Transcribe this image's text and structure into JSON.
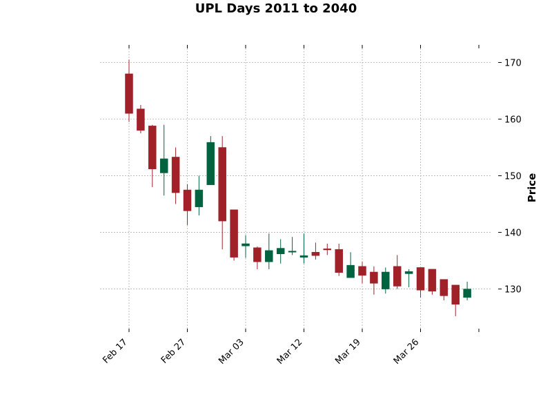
{
  "chart_data": {
    "type": "candlestick",
    "title": "UPL Days 2011 to 2040",
    "ylabel": "Price",
    "xlabel": "",
    "ylim": [
      123,
      172.5
    ],
    "yticks": [
      130,
      140,
      150,
      160,
      170
    ],
    "grid": true,
    "y_axis_side": "right",
    "colors": {
      "up": "#006340",
      "down": "#a02128"
    },
    "x_tick_labels": [
      "Feb 17",
      "Feb 27",
      "Mar 03",
      "Mar 12",
      "Mar 19",
      "Mar 26",
      ""
    ],
    "x_tick_index": [
      0,
      5,
      10,
      15,
      20,
      25,
      30
    ],
    "candles": [
      {
        "open": 168.0,
        "high": 170.5,
        "low": 159.5,
        "close": 161.0
      },
      {
        "open": 161.8,
        "high": 162.5,
        "low": 157.5,
        "close": 158.0
      },
      {
        "open": 158.8,
        "high": 159.0,
        "low": 148.0,
        "close": 151.2
      },
      {
        "open": 150.5,
        "high": 159.0,
        "low": 146.5,
        "close": 153.0
      },
      {
        "open": 153.3,
        "high": 155.0,
        "low": 145.0,
        "close": 147.0
      },
      {
        "open": 147.5,
        "high": 148.5,
        "low": 141.3,
        "close": 143.8
      },
      {
        "open": 144.5,
        "high": 150.0,
        "low": 143.0,
        "close": 147.5
      },
      {
        "open": 148.4,
        "high": 157.0,
        "low": 148.4,
        "close": 155.9
      },
      {
        "open": 155.0,
        "high": 157.0,
        "low": 137.0,
        "close": 142.0
      },
      {
        "open": 144.0,
        "high": 144.0,
        "low": 135.0,
        "close": 135.6
      },
      {
        "open": 137.6,
        "high": 139.5,
        "low": 135.5,
        "close": 138.0
      },
      {
        "open": 137.3,
        "high": 137.5,
        "low": 133.5,
        "close": 134.8
      },
      {
        "open": 134.8,
        "high": 139.8,
        "low": 133.5,
        "close": 136.8
      },
      {
        "open": 136.2,
        "high": 138.8,
        "low": 134.5,
        "close": 137.2
      },
      {
        "open": 136.5,
        "high": 139.2,
        "low": 136.0,
        "close": 136.7
      },
      {
        "open": 135.6,
        "high": 139.8,
        "low": 134.5,
        "close": 135.9
      },
      {
        "open": 136.5,
        "high": 138.2,
        "low": 135.2,
        "close": 135.9
      },
      {
        "open": 137.1,
        "high": 138.0,
        "low": 136.0,
        "close": 136.9
      },
      {
        "open": 137.0,
        "high": 138.0,
        "low": 132.3,
        "close": 132.9
      },
      {
        "open": 132.0,
        "high": 136.5,
        "low": 132.0,
        "close": 134.2
      },
      {
        "open": 134.0,
        "high": 134.8,
        "low": 131.0,
        "close": 132.4
      },
      {
        "open": 133.0,
        "high": 134.0,
        "low": 129.0,
        "close": 131.0
      },
      {
        "open": 130.0,
        "high": 133.8,
        "low": 129.2,
        "close": 133.0
      },
      {
        "open": 134.0,
        "high": 136.0,
        "low": 130.0,
        "close": 130.5
      },
      {
        "open": 132.7,
        "high": 133.5,
        "low": 130.3,
        "close": 133.1
      },
      {
        "open": 133.8,
        "high": 133.8,
        "low": 128.5,
        "close": 129.8
      },
      {
        "open": 133.5,
        "high": 133.5,
        "low": 129.0,
        "close": 129.6
      },
      {
        "open": 131.7,
        "high": 131.7,
        "low": 128.0,
        "close": 128.8
      },
      {
        "open": 130.7,
        "high": 130.7,
        "low": 125.2,
        "close": 127.3
      },
      {
        "open": 128.5,
        "high": 131.3,
        "low": 128.0,
        "close": 130.0
      }
    ]
  }
}
